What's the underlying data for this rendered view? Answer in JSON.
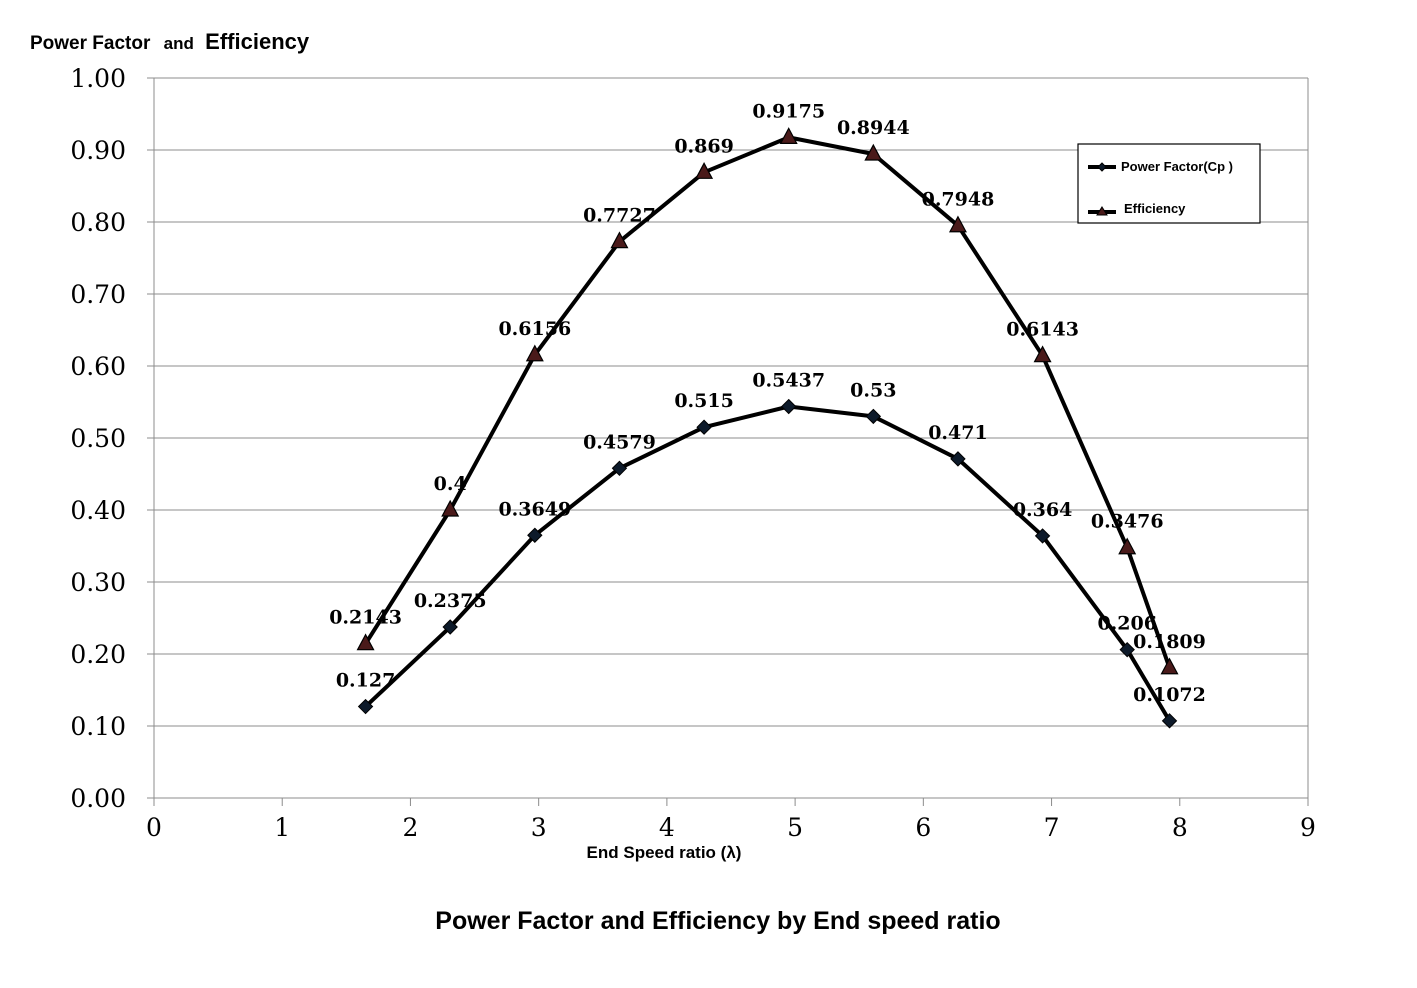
{
  "chart_data": {
    "type": "line",
    "title": "Power Factor and Efficiency by End speed ratio",
    "ylabel": {
      "part1": "Power Factor",
      "part2": "and",
      "part3": "Efficiency"
    },
    "xlabel": "End Speed ratio (λ)",
    "xlim": [
      0,
      9
    ],
    "ylim": [
      0,
      1
    ],
    "x_ticks": [
      "0",
      "1",
      "2",
      "3",
      "4",
      "5",
      "6",
      "7",
      "8",
      "9"
    ],
    "y_ticks": [
      "0.00",
      "0.10",
      "0.20",
      "0.30",
      "0.40",
      "0.50",
      "0.60",
      "0.70",
      "0.80",
      "0.90",
      "1.00"
    ],
    "grid": true,
    "legend_position": "top-right",
    "x": [
      1.65,
      2.31,
      2.97,
      3.63,
      4.29,
      4.95,
      5.61,
      6.27,
      6.93,
      7.59,
      7.92
    ],
    "series": [
      {
        "name": "Power Factor(Cp )",
        "marker": "diamond",
        "color": "#000000",
        "marker_fill": "#0d1a2a",
        "values": [
          0.127,
          0.2375,
          0.3649,
          0.4579,
          0.515,
          0.5437,
          0.53,
          0.471,
          0.364,
          0.206,
          0.1072
        ],
        "labels": [
          "0.127",
          "0.2375",
          "0.3649",
          "0.4579",
          "0.515",
          "0.5437",
          "0.53",
          "0.471",
          "0.364",
          "0.206",
          "0.1072"
        ]
      },
      {
        "name": "Efficiency",
        "marker": "triangle",
        "color": "#000000",
        "marker_fill": "#4a1a1a",
        "values": [
          0.2143,
          0.4,
          0.6156,
          0.7727,
          0.869,
          0.9175,
          0.8944,
          0.7948,
          0.6143,
          0.3476,
          0.1809
        ],
        "labels": [
          "0.2143",
          "0.4",
          "0.6156",
          "0.7727",
          "0.869",
          "0.9175",
          "0.8944",
          "0.7948",
          "0.6143",
          "0.3476",
          "0.1809"
        ]
      }
    ]
  }
}
